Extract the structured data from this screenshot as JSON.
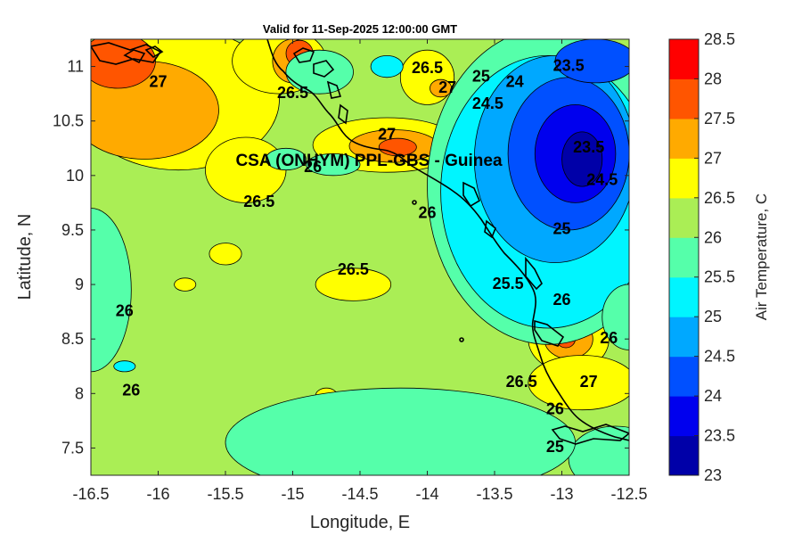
{
  "chart_data": {
    "type": "heatmap",
    "subtype": "filled-contour-map",
    "title": "Valid for 11-Sep-2025 12:00:00 GMT",
    "xlabel": "Longitude, E",
    "ylabel": "Latitude, N",
    "xlim": [
      -16.5,
      -12.5
    ],
    "ylim": [
      7.25,
      11.25
    ],
    "xticks": [
      "-16.5",
      "-16",
      "-15.5",
      "-15",
      "-14.5",
      "-14",
      "-13.5",
      "-13",
      "-12.5"
    ],
    "yticks": [
      "7.5",
      "8",
      "8.5",
      "9",
      "9.5",
      "10",
      "10.5",
      "11"
    ],
    "annotation": {
      "text": "CSA (ONHYM) PPL-GBS - Guinea",
      "x": -14.0,
      "y": 10.13
    },
    "colorbar": {
      "label": "Air Temperature, C",
      "levels": [
        23,
        23.5,
        24,
        24.5,
        25,
        25.5,
        26,
        26.5,
        27,
        27.5,
        28,
        28.5
      ],
      "tick_labels": [
        "23",
        "23.5",
        "24",
        "24.5",
        "25",
        "25.5",
        "26",
        "26.5",
        "27",
        "27.5",
        "28",
        "28.5"
      ],
      "colors": [
        "#0000a8",
        "#0000ee",
        "#0050ff",
        "#00a8ff",
        "#00f5ff",
        "#55ffaa",
        "#aaee55",
        "#ffff00",
        "#ffaa00",
        "#ff5500",
        "#ff0000",
        "#b00000"
      ]
    },
    "background_value": 26,
    "field_blobs": [
      {
        "cx": -15.85,
        "cy": 10.7,
        "rx": 0.75,
        "ry": 0.65,
        "value": 26.5
      },
      {
        "cx": -16.1,
        "cy": 10.6,
        "rx": 0.55,
        "ry": 0.45,
        "value": 27
      },
      {
        "cx": -16.3,
        "cy": 11.05,
        "rx": 0.28,
        "ry": 0.25,
        "value": 27.5
      },
      {
        "cx": -15.1,
        "cy": 11.05,
        "rx": 0.35,
        "ry": 0.3,
        "value": 26.5
      },
      {
        "cx": -15.0,
        "cy": 11.05,
        "rx": 0.15,
        "ry": 0.2,
        "value": 27
      },
      {
        "cx": -14.95,
        "cy": 11.12,
        "rx": 0.1,
        "ry": 0.12,
        "value": 27.5
      },
      {
        "cx": -15.35,
        "cy": 10.05,
        "rx": 0.3,
        "ry": 0.3,
        "value": 26.5
      },
      {
        "cx": -14.3,
        "cy": 10.28,
        "rx": 0.55,
        "ry": 0.25,
        "value": 26.5
      },
      {
        "cx": -14.25,
        "cy": 10.27,
        "rx": 0.33,
        "ry": 0.15,
        "value": 27
      },
      {
        "cx": -14.22,
        "cy": 10.26,
        "rx": 0.14,
        "ry": 0.08,
        "value": 27.5
      },
      {
        "cx": -14.0,
        "cy": 10.9,
        "rx": 0.2,
        "ry": 0.25,
        "value": 26.5
      },
      {
        "cx": -13.9,
        "cy": 10.8,
        "rx": 0.08,
        "ry": 0.08,
        "value": 27
      },
      {
        "cx": -14.55,
        "cy": 9.0,
        "rx": 0.28,
        "ry": 0.15,
        "value": 26.5
      },
      {
        "cx": -15.5,
        "cy": 9.28,
        "rx": 0.12,
        "ry": 0.1,
        "value": 26.5
      },
      {
        "cx": -15.8,
        "cy": 9.0,
        "rx": 0.08,
        "ry": 0.06,
        "value": 26.5
      },
      {
        "cx": -14.75,
        "cy": 7.98,
        "rx": 0.08,
        "ry": 0.07,
        "value": 26.5
      },
      {
        "cx": -12.95,
        "cy": 8.5,
        "rx": 0.3,
        "ry": 0.3,
        "value": 26.5
      },
      {
        "cx": -12.95,
        "cy": 8.5,
        "rx": 0.18,
        "ry": 0.18,
        "value": 27
      },
      {
        "cx": -12.97,
        "cy": 8.5,
        "rx": 0.07,
        "ry": 0.08,
        "value": 27.5
      },
      {
        "cx": -12.75,
        "cy": 8.05,
        "rx": 0.25,
        "ry": 0.12,
        "value": 27
      },
      {
        "cx": -12.85,
        "cy": 8.1,
        "rx": 0.4,
        "ry": 0.25,
        "value": 26.5
      },
      {
        "cx": -13.1,
        "cy": 9.9,
        "rx": 0.9,
        "ry": 1.45,
        "value": 25.5
      },
      {
        "cx": -13.1,
        "cy": 9.85,
        "rx": 0.8,
        "ry": 1.25,
        "value": 25
      },
      {
        "cx": -13.05,
        "cy": 10.15,
        "rx": 0.6,
        "ry": 0.95,
        "value": 24.5
      },
      {
        "cx": -12.95,
        "cy": 10.2,
        "rx": 0.45,
        "ry": 0.7,
        "value": 24
      },
      {
        "cx": -12.9,
        "cy": 10.2,
        "rx": 0.3,
        "ry": 0.45,
        "value": 23.5
      },
      {
        "cx": -12.85,
        "cy": 10.15,
        "rx": 0.15,
        "ry": 0.25,
        "value": 23
      },
      {
        "cx": -12.75,
        "cy": 11.05,
        "rx": 0.3,
        "ry": 0.2,
        "value": 24
      },
      {
        "cx": -12.5,
        "cy": 8.7,
        "rx": 0.2,
        "ry": 0.3,
        "value": 25.5
      },
      {
        "cx": -12.6,
        "cy": 7.4,
        "rx": 0.35,
        "ry": 0.3,
        "value": 25.5
      },
      {
        "cx": -14.8,
        "cy": 10.95,
        "rx": 0.25,
        "ry": 0.2,
        "value": 25.5
      },
      {
        "cx": -14.3,
        "cy": 11.0,
        "rx": 0.12,
        "ry": 0.1,
        "value": 25
      },
      {
        "cx": -15.05,
        "cy": 10.15,
        "rx": 0.15,
        "ry": 0.1,
        "value": 25.5
      },
      {
        "cx": -14.7,
        "cy": 10.1,
        "rx": 0.2,
        "ry": 0.1,
        "value": 25.5
      },
      {
        "cx": -16.5,
        "cy": 8.95,
        "rx": 0.3,
        "ry": 0.75,
        "value": 25.5
      },
      {
        "cx": -16.25,
        "cy": 8.25,
        "rx": 0.08,
        "ry": 0.05,
        "value": 25
      },
      {
        "cx": -14.2,
        "cy": 7.55,
        "rx": 1.3,
        "ry": 0.5,
        "value": 25.5
      }
    ],
    "contour_labels": [
      {
        "text": "27",
        "x": -16.0,
        "y": 10.85
      },
      {
        "text": "26.5",
        "x": -15.0,
        "y": 10.75
      },
      {
        "text": "26",
        "x": -14.85,
        "y": 10.07
      },
      {
        "text": "26.5",
        "x": -15.25,
        "y": 9.75
      },
      {
        "text": "26.5",
        "x": -14.0,
        "y": 10.98
      },
      {
        "text": "27",
        "x": -13.85,
        "y": 10.8
      },
      {
        "text": "26",
        "x": -14.0,
        "y": 9.65
      },
      {
        "text": "25",
        "x": -13.6,
        "y": 10.9
      },
      {
        "text": "24.5",
        "x": -13.55,
        "y": 10.65
      },
      {
        "text": "24",
        "x": -13.35,
        "y": 10.85
      },
      {
        "text": "23.5",
        "x": -12.95,
        "y": 11.0
      },
      {
        "text": "23.5",
        "x": -12.8,
        "y": 10.25
      },
      {
        "text": "24.5",
        "x": -12.7,
        "y": 9.95
      },
      {
        "text": "25",
        "x": -13.0,
        "y": 9.5
      },
      {
        "text": "25.5",
        "x": -13.4,
        "y": 9.0
      },
      {
        "text": "26",
        "x": -13.0,
        "y": 8.85
      },
      {
        "text": "26",
        "x": -12.65,
        "y": 8.5
      },
      {
        "text": "27",
        "x": -12.8,
        "y": 8.1
      },
      {
        "text": "26.5",
        "x": -13.3,
        "y": 8.1
      },
      {
        "text": "26",
        "x": -13.05,
        "y": 7.85
      },
      {
        "text": "25",
        "x": -13.05,
        "y": 7.5
      },
      {
        "text": "26.5",
        "x": -14.55,
        "y": 9.13
      },
      {
        "text": "26",
        "x": -16.25,
        "y": 8.75
      },
      {
        "text": "26",
        "x": -16.2,
        "y": 8.02
      },
      {
        "text": "27",
        "x": -14.3,
        "y": 10.37
      }
    ],
    "grid": false,
    "legend": "colorbar-right"
  }
}
